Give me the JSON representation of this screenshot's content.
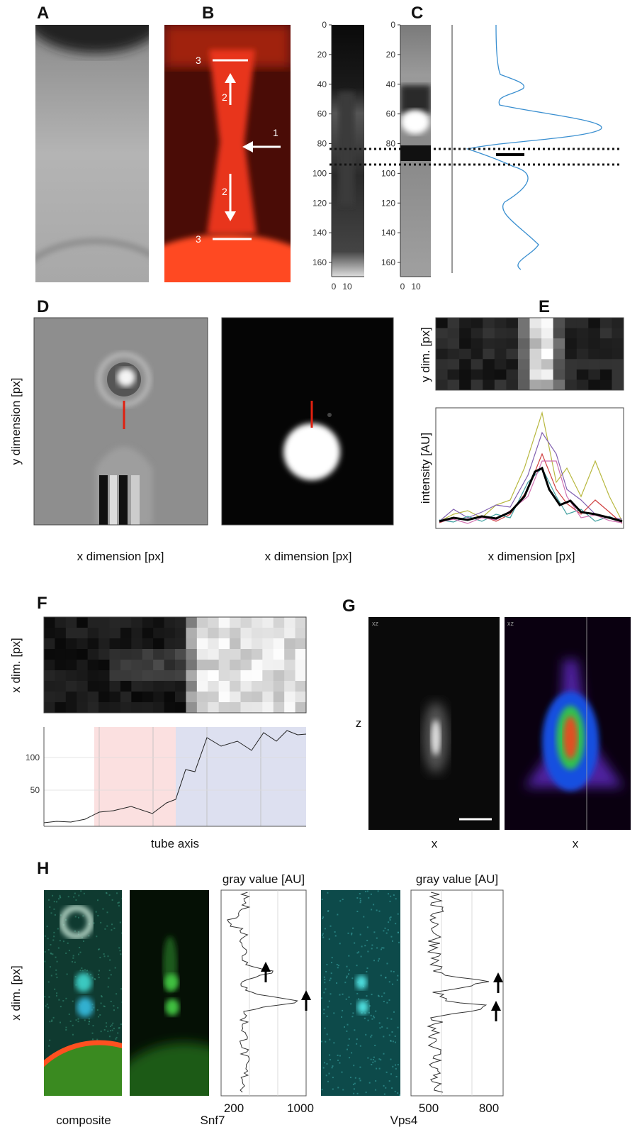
{
  "panels": {
    "A": {
      "label": "A"
    },
    "B": {
      "label": "B",
      "annotations": [
        "3",
        "2",
        "1",
        "2",
        "3"
      ]
    },
    "C": {
      "label": "C",
      "yticks": [
        "0",
        "20",
        "40",
        "60",
        "80",
        "100",
        "120",
        "140",
        "160"
      ],
      "xticks": [
        "0",
        "10"
      ]
    },
    "D": {
      "label": "D",
      "y_label": "y dimension [px]",
      "x_label": "x dimension [px]"
    },
    "E": {
      "label": "E",
      "image_y_label": "y dim. [px]",
      "plot_y_label": "intensity [AU]",
      "x_label": "x dimension [px]"
    },
    "F": {
      "label": "F",
      "y_label": "x dim. [px]",
      "yticks": [
        "50",
        "100"
      ],
      "x_label": "tube axis"
    },
    "G": {
      "label": "G",
      "z_label": "z",
      "x_label": "x",
      "view_label": "xz"
    },
    "H": {
      "label": "H",
      "y_label": "x dim. [px]",
      "plot_title": "gray value [AU]",
      "snf7_ticks": [
        "200",
        "1000"
      ],
      "vps4_ticks": [
        "500",
        "800"
      ],
      "captions": [
        "composite",
        "Snf7",
        "Vps4"
      ]
    }
  }
}
